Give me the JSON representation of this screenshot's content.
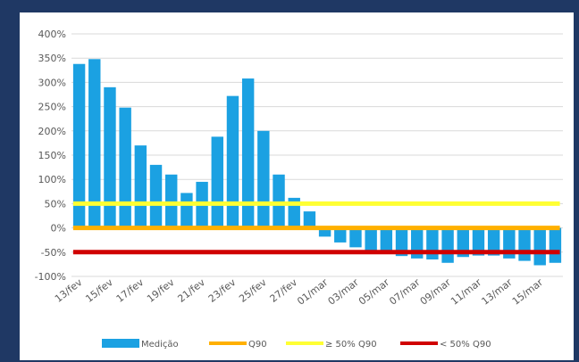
{
  "chart_data": {
    "type": "bar",
    "title": "",
    "xlabel": "",
    "ylabel": "",
    "ylim": [
      -100,
      400
    ],
    "y_tick_labels": [
      "400%",
      "350%",
      "300%",
      "250%",
      "200%",
      "150%",
      "100%",
      "50%",
      "0%",
      "-50%",
      "-100%"
    ],
    "y_ticks": [
      400,
      350,
      300,
      250,
      200,
      150,
      100,
      50,
      0,
      -50,
      -100
    ],
    "grid": true,
    "legend_position": "bottom",
    "categories": [
      "13/fev",
      "14/fev",
      "15/fev",
      "16/fev",
      "17/fev",
      "18/fev",
      "19/fev",
      "20/fev",
      "21/fev",
      "22/fev",
      "23/fev",
      "24/fev",
      "25/fev",
      "26/fev",
      "27/fev",
      "28/fev",
      "01/mar",
      "02/mar",
      "03/mar",
      "04/mar",
      "05/mar",
      "06/mar",
      "07/mar",
      "08/mar",
      "09/mar",
      "10/mar",
      "11/mar",
      "12/mar",
      "13/mar",
      "14/mar",
      "15/mar",
      "16/mar"
    ],
    "x_tick_labels": [
      "13/fev",
      "15/fev",
      "17/fev",
      "19/fev",
      "21/fev",
      "23/fev",
      "25/fev",
      "27/fev",
      "01/mar",
      "03/mar",
      "05/mar",
      "07/mar",
      "09/mar",
      "11/mar",
      "13/mar",
      "15/mar"
    ],
    "series": [
      {
        "name": "Medição",
        "kind": "bar",
        "color": "#1ba1e2",
        "values": [
          338,
          348,
          290,
          248,
          170,
          130,
          110,
          72,
          95,
          188,
          272,
          308,
          200,
          110,
          62,
          34,
          -18,
          -30,
          -40,
          -50,
          -53,
          -58,
          -63,
          -65,
          -72,
          -60,
          -57,
          -57,
          -63,
          -68,
          -77,
          -72
        ]
      },
      {
        "name": "Q90",
        "kind": "line",
        "color": "#ffb000",
        "value": 0
      },
      {
        "name": "≥ 50% Q90",
        "kind": "line",
        "color": "#ffff33",
        "value": 50
      },
      {
        "name": "< 50% Q90",
        "kind": "line",
        "color": "#d00000",
        "value": -50
      }
    ]
  }
}
